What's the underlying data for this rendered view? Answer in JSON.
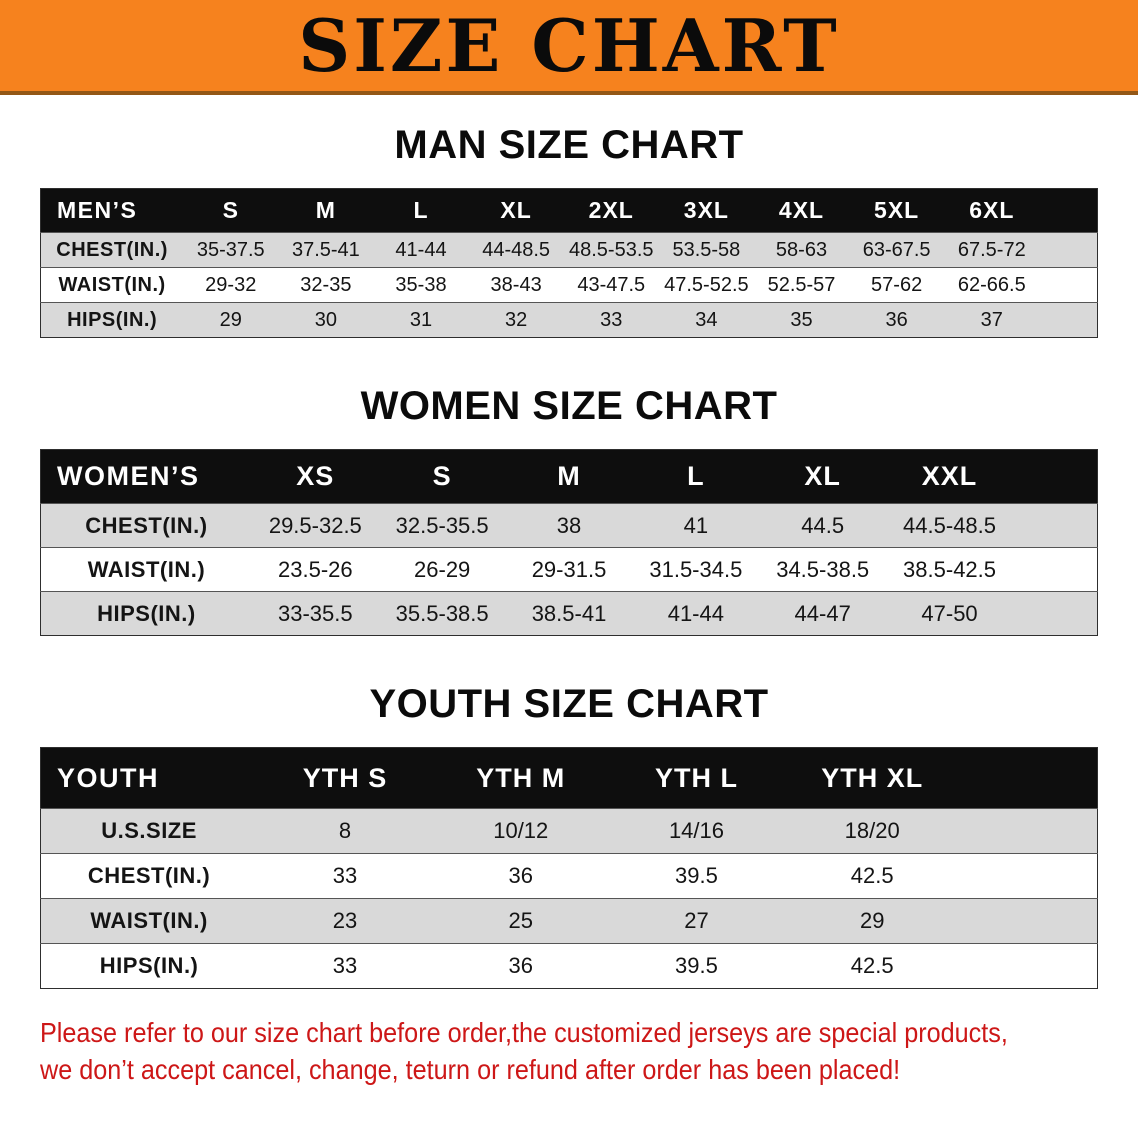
{
  "banner": {
    "title": "SIZE CHART"
  },
  "colors": {
    "banner_bg": "#f6821e",
    "table_header_bg": "#0e0e0e",
    "row_stripe": "#d9d9d9",
    "footer_text": "#cd1717"
  },
  "sections": [
    {
      "heading": "MAN SIZE CHART",
      "table": {
        "header": [
          "MEN’S",
          "S",
          "M",
          "L",
          "XL",
          "2XL",
          "3XL",
          "4XL",
          "5XL",
          "6XL"
        ],
        "rows": [
          {
            "label": "CHEST(IN.)",
            "values": [
              "35-37.5",
              "37.5-41",
              "41-44",
              "44-48.5",
              "48.5-53.5",
              "53.5-58",
              "58-63",
              "63-67.5",
              "67.5-72"
            ]
          },
          {
            "label": "WAIST(IN.)",
            "values": [
              "29-32",
              "32-35",
              "35-38",
              "38-43",
              "43-47.5",
              "47.5-52.5",
              "52.5-57",
              "57-62",
              "62-66.5"
            ]
          },
          {
            "label": "HIPS(IN.)",
            "values": [
              "29",
              "30",
              "31",
              "32",
              "33",
              "34",
              "35",
              "36",
              "37"
            ]
          }
        ]
      }
    },
    {
      "heading": "WOMEN SIZE CHART",
      "table": {
        "header": [
          "WOMEN’S",
          "XS",
          "S",
          "M",
          "L",
          "XL",
          "XXL"
        ],
        "rows": [
          {
            "label": "CHEST(IN.)",
            "values": [
              "29.5-32.5",
              "32.5-35.5",
              "38",
              "41",
              "44.5",
              "44.5-48.5"
            ]
          },
          {
            "label": "WAIST(IN.)",
            "values": [
              "23.5-26",
              "26-29",
              "29-31.5",
              "31.5-34.5",
              "34.5-38.5",
              "38.5-42.5"
            ]
          },
          {
            "label": "HIPS(IN.)",
            "values": [
              "33-35.5",
              "35.5-38.5",
              "38.5-41",
              "41-44",
              "44-47",
              "47-50"
            ]
          }
        ]
      }
    },
    {
      "heading": "YOUTH SIZE CHART",
      "table": {
        "header": [
          "YOUTH",
          "YTH S",
          "YTH M",
          "YTH L",
          "YTH XL"
        ],
        "rows": [
          {
            "label": "U.S.SIZE",
            "values": [
              "8",
              "10/12",
              "14/16",
              "18/20"
            ]
          },
          {
            "label": "CHEST(IN.)",
            "values": [
              "33",
              "36",
              "39.5",
              "42.5"
            ]
          },
          {
            "label": "WAIST(IN.)",
            "values": [
              "23",
              "25",
              "27",
              "29"
            ]
          },
          {
            "label": "HIPS(IN.)",
            "values": [
              "33",
              "36",
              "39.5",
              "42.5"
            ]
          }
        ]
      }
    }
  ],
  "footer": {
    "line1": "Please refer to our size chart before order,the customized jerseys are special products,",
    "line2": "we don’t accept cancel, change, teturn or refund after order has been placed!"
  }
}
